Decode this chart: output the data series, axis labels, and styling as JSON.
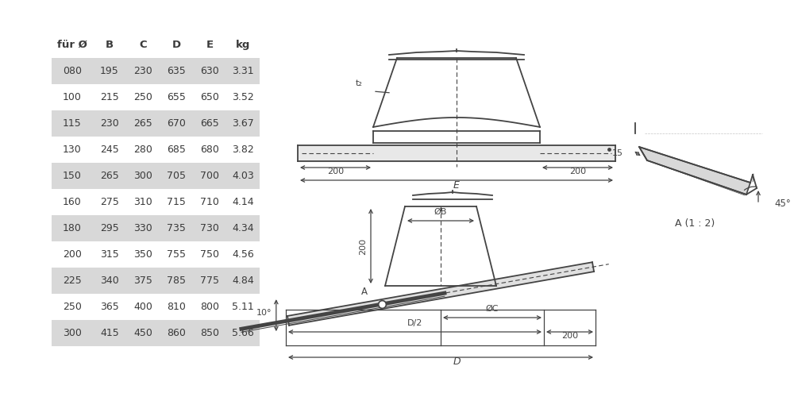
{
  "bg_color": "#ffffff",
  "table_headers": [
    "für Ø",
    "B",
    "C",
    "D",
    "E",
    "kg"
  ],
  "table_rows": [
    [
      "080",
      "195",
      "230",
      "635",
      "630",
      "3.31"
    ],
    [
      "100",
      "215",
      "250",
      "655",
      "650",
      "3.52"
    ],
    [
      "115",
      "230",
      "265",
      "670",
      "665",
      "3.67"
    ],
    [
      "130",
      "245",
      "280",
      "685",
      "680",
      "3.82"
    ],
    [
      "150",
      "265",
      "300",
      "705",
      "700",
      "4.03"
    ],
    [
      "160",
      "275",
      "310",
      "715",
      "710",
      "4.14"
    ],
    [
      "180",
      "295",
      "330",
      "735",
      "730",
      "4.34"
    ],
    [
      "200",
      "315",
      "350",
      "755",
      "750",
      "4.56"
    ],
    [
      "225",
      "340",
      "375",
      "785",
      "775",
      "4.84"
    ],
    [
      "250",
      "365",
      "400",
      "810",
      "800",
      "5.11"
    ],
    [
      "300",
      "415",
      "450",
      "860",
      "850",
      "5.66"
    ]
  ],
  "shaded_rows": [
    0,
    2,
    4,
    6,
    8,
    10
  ],
  "row_bg_shaded": "#d8d8d8",
  "row_bg_white": "#ffffff",
  "text_color": "#3a3a3a",
  "line_color": "#444444"
}
